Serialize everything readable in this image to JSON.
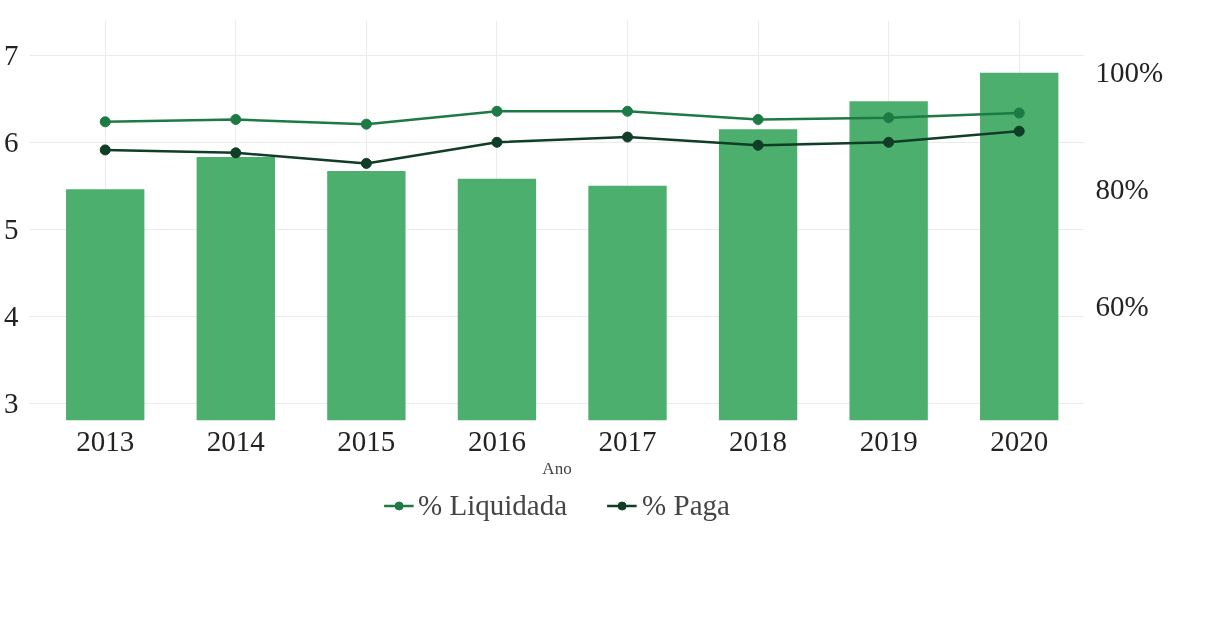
{
  "chart_data": {
    "type": "bar",
    "xlabel": "Ano",
    "categories": [
      "2013",
      "2014",
      "2015",
      "2016",
      "2017",
      "2018",
      "2019",
      "2020"
    ],
    "ylim": [
      2.8,
      7.4
    ],
    "yticks": [
      3,
      4,
      5,
      6,
      7
    ],
    "y2lim": [
      40.5,
      108.8
    ],
    "y2ticks": [
      {
        "value": 60,
        "label": "60%"
      },
      {
        "value": 80,
        "label": "80%"
      },
      {
        "value": 100,
        "label": "100%"
      }
    ],
    "series": [
      {
        "color": "#4caf6e",
        "values": [
          5.46,
          5.83,
          5.67,
          5.58,
          5.5,
          6.15,
          6.47,
          6.8
        ]
      },
      {
        "type": "line",
        "axis": "y2",
        "name": "% Liquidada",
        "color": "#1e7a45",
        "marker": "circle",
        "values": [
          91.5,
          91.9,
          91.1,
          93.3,
          93.3,
          91.9,
          92.2,
          93.0
        ]
      },
      {
        "type": "line",
        "axis": "y2",
        "name": "% Paga",
        "color": "#0f3d25",
        "marker": "circle",
        "values": [
          86.7,
          86.2,
          84.4,
          88.0,
          88.9,
          87.5,
          88.0,
          89.9
        ]
      }
    ],
    "grid": true,
    "legend": "bottom"
  }
}
